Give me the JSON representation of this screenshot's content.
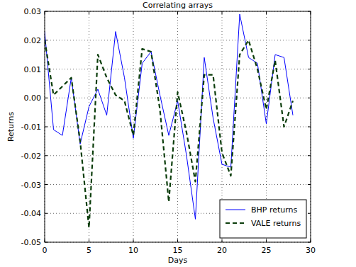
{
  "chart_data": {
    "type": "line",
    "title": "Correlating arrays",
    "xlabel": "Days",
    "ylabel": "Returns",
    "x": [
      0,
      1,
      2,
      3,
      4,
      5,
      6,
      7,
      8,
      9,
      10,
      11,
      12,
      13,
      14,
      15,
      16,
      17,
      18,
      19,
      20,
      21,
      22,
      23,
      24,
      25,
      26,
      27,
      28
    ],
    "series": [
      {
        "name": "BHP returns",
        "color": "#0000ff",
        "line_style": "solid",
        "values": [
          0.023,
          -0.011,
          -0.013,
          0.007,
          -0.016,
          -0.003,
          0.003,
          -0.006,
          0.023,
          0.007,
          -0.014,
          0.012,
          0.016,
          0.001,
          -0.013,
          -0.001,
          -0.02,
          -0.042,
          0.014,
          -0.007,
          -0.023,
          -0.024,
          0.029,
          0.014,
          0.012,
          -0.009,
          0.015,
          0.014,
          -0.006
        ]
      },
      {
        "name": "VALE returns",
        "color": "#0b3d0b",
        "line_style": "dashed",
        "values": [
          0.02,
          0.001,
          0.004,
          0.007,
          -0.015,
          -0.045,
          0.015,
          0.007,
          0.001,
          -0.001,
          -0.013,
          0.017,
          0.016,
          -0.004,
          -0.036,
          0.002,
          -0.012,
          -0.029,
          0.008,
          0.008,
          -0.019,
          -0.027,
          0.015,
          0.02,
          0.01,
          -0.004,
          0.013,
          -0.01,
          -0.001
        ]
      }
    ],
    "xlim": [
      0,
      30
    ],
    "xticks": [
      0,
      5,
      10,
      15,
      20,
      25,
      30
    ],
    "ylim": [
      -0.05,
      0.03
    ],
    "yticks": [
      -0.05,
      -0.04,
      -0.03,
      -0.02,
      -0.01,
      {
        "value": 0,
        "label": "0.00"
      },
      0.01,
      0.02,
      0.03
    ],
    "grid": true,
    "legend": "lower right"
  }
}
